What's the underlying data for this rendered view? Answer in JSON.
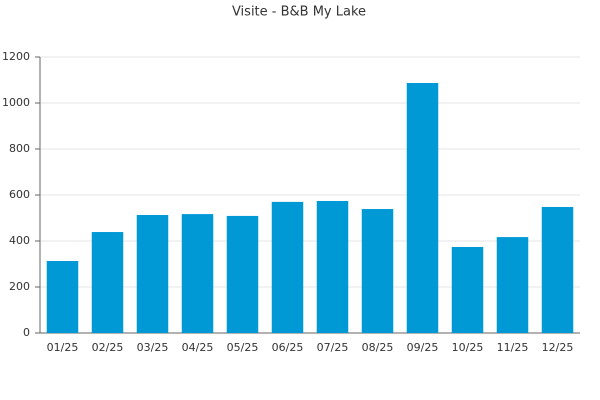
{
  "chart_data": {
    "type": "bar",
    "title": "Visite - B&B My Lake",
    "categories": [
      "01/25",
      "02/25",
      "03/25",
      "04/25",
      "05/25",
      "06/25",
      "07/25",
      "08/25",
      "09/25",
      "10/25",
      "11/25",
      "12/25"
    ],
    "values": [
      313,
      439,
      513,
      517,
      509,
      570,
      574,
      539,
      1087,
      374,
      417,
      548
    ],
    "color": "#0099d6",
    "ylim": [
      0,
      1200
    ],
    "yticks": [
      0,
      200,
      400,
      600,
      800,
      1000,
      1200
    ],
    "grid": true
  }
}
